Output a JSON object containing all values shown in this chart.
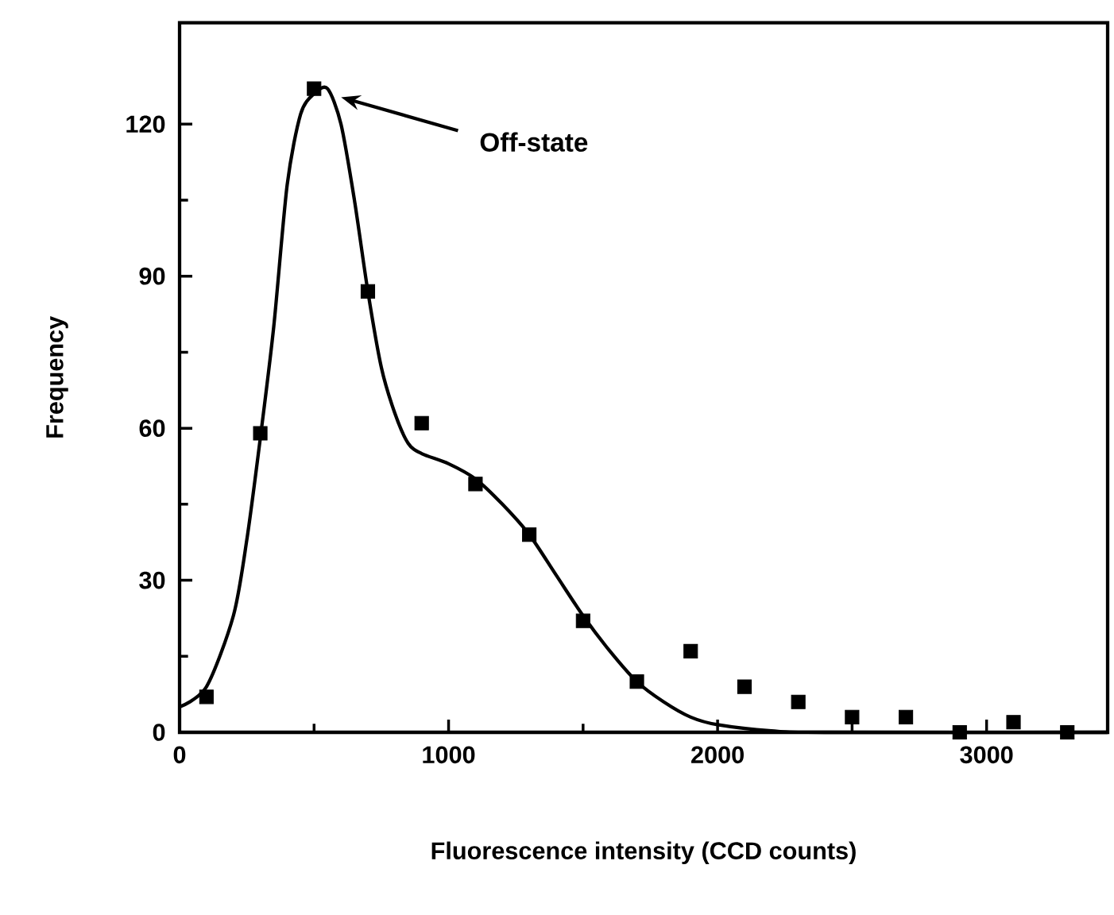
{
  "chart_data": {
    "type": "scatter",
    "xlabel": "Fluorescence intensity (CCD counts)",
    "ylabel": "Frequency",
    "xlim": [
      0,
      3450
    ],
    "xticks": [
      0,
      1000,
      2000,
      3000
    ],
    "ylim": [
      0,
      140
    ],
    "yticks": [
      0,
      30,
      60,
      90,
      120
    ],
    "marker": "square",
    "grid": false,
    "annotations": [
      "Off-state"
    ],
    "series": [
      {
        "color": "#000000",
        "x": [
          100,
          300,
          500,
          700,
          900,
          1100,
          1300,
          1500,
          1700,
          1900,
          2100,
          2300,
          2500,
          2700,
          2900,
          3100,
          3300
        ],
        "values": [
          7,
          59,
          127,
          87,
          61,
          49,
          39,
          22,
          10,
          16,
          9,
          6,
          3,
          3,
          0,
          2,
          0
        ]
      },
      {
        "type": "line",
        "color": "#000000",
        "line_style": "solid",
        "marker": "none",
        "x": [
          0,
          100,
          200,
          250,
          300,
          350,
          400,
          450,
          500,
          550,
          600,
          650,
          700,
          750,
          800,
          850,
          900,
          1000,
          1100,
          1200,
          1300,
          1400,
          1500,
          1600,
          1700,
          1800,
          1900,
          2000,
          2200,
          2400,
          3450
        ],
        "values": [
          5,
          9,
          23,
          38,
          58,
          80,
          108,
          122,
          126,
          127,
          120,
          105,
          87,
          72,
          63,
          57,
          55,
          53,
          50,
          45,
          39,
          31,
          23,
          16,
          10,
          6,
          3,
          1.5,
          0.3,
          0,
          0
        ]
      }
    ]
  }
}
